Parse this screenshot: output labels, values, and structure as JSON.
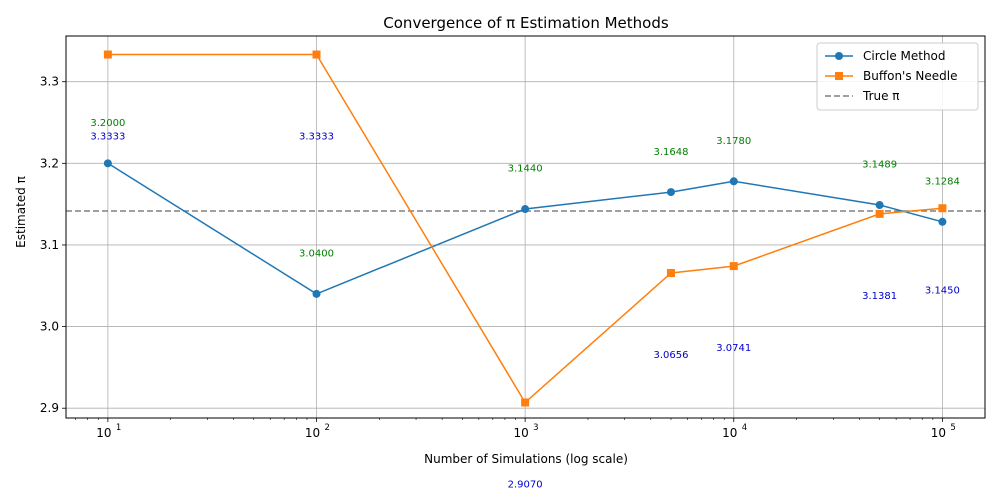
{
  "chart_data": {
    "type": "line",
    "title": "Convergence of π Estimation Methods",
    "xlabel": "Number of Simulations (log scale)",
    "ylabel": "Estimated π",
    "xscale": "log",
    "xlim": [
      6.3,
      160000
    ],
    "ylim": [
      2.888,
      3.356
    ],
    "grid": true,
    "legend_position": "top-right",
    "x": [
      10,
      100,
      1000,
      5000,
      10000,
      50000,
      100000
    ],
    "x_ticks": [
      {
        "value": 10,
        "base": "10",
        "exp": "1"
      },
      {
        "value": 100,
        "base": "10",
        "exp": "2"
      },
      {
        "value": 1000,
        "base": "10",
        "exp": "3"
      },
      {
        "value": 10000,
        "base": "10",
        "exp": "4"
      },
      {
        "value": 100000,
        "base": "10",
        "exp": "5"
      }
    ],
    "y_ticks": [
      "2.9",
      "3.0",
      "3.1",
      "3.2",
      "3.3"
    ],
    "series": [
      {
        "name": "Circle Method",
        "color": "#1f77b4",
        "marker": "circle",
        "values": [
          3.2,
          3.04,
          3.144,
          3.1648,
          3.178,
          3.1489,
          3.1284
        ]
      },
      {
        "name": "Buffon's Needle",
        "color": "#ff7f0e",
        "marker": "square",
        "values": [
          3.3333,
          3.3333,
          2.907,
          3.0656,
          3.0741,
          3.1381,
          3.145
        ]
      }
    ],
    "reference_line": {
      "name": "True π",
      "value": 3.14159,
      "color": "#808080",
      "style": "dashed"
    },
    "annotations": {
      "circle": {
        "color": "#008000",
        "labels": [
          "3.2000",
          "3.0400",
          "3.1440",
          "3.1648",
          "3.1780",
          "3.1489",
          "3.1284"
        ]
      },
      "buffon": {
        "color": "#0000cc",
        "labels": [
          "3.3333",
          "3.3333",
          "2.9070",
          "3.0656",
          "3.0741",
          "3.1381",
          "3.1450"
        ]
      }
    }
  }
}
